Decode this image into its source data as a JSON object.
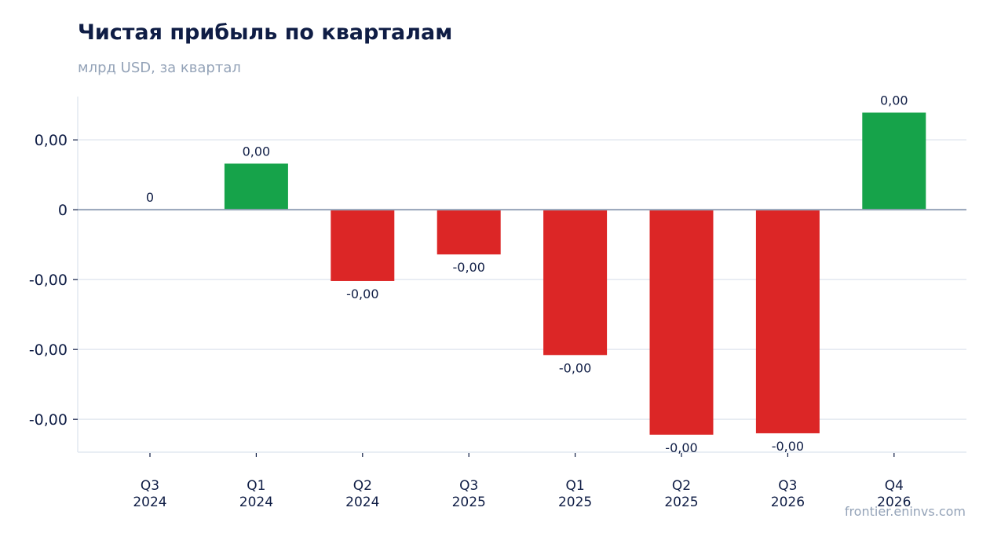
{
  "header": {
    "title": "Чистая прибыль по кварталам",
    "subtitle": "млрд USD, за квартал"
  },
  "footer": {
    "source": "frontier.eninvs.com"
  },
  "colors": {
    "positive": "#16a34a",
    "negative": "#dc2626",
    "grid": "#e2e8f0",
    "zero_line": "#94a3b8",
    "axis_text": "#0f1d45"
  },
  "chart_data": {
    "type": "bar",
    "categories": [
      "Q3\n2024",
      "Q1\n2024",
      "Q2\n2024",
      "Q3\n2025",
      "Q1\n2025",
      "Q2\n2025",
      "Q3\n2026",
      "Q4\n2026"
    ],
    "values": [
      0,
      0.00066,
      -0.00102,
      -0.00064,
      -0.00208,
      -0.00322,
      -0.0032,
      0.00139
    ],
    "data_labels": [
      "0",
      "0,00",
      "-0,00",
      "-0,00",
      "-0,00",
      "-0,00",
      "-0,00",
      "0,00"
    ],
    "y_ticks": [
      0.001,
      0,
      -0.001,
      -0.002,
      -0.003
    ],
    "y_tick_labels": [
      "0,00",
      "0",
      "-0,00",
      "-0,00",
      "-0,00"
    ],
    "ylim": [
      -0.00347,
      0.00162
    ],
    "grid": true,
    "legend": "none",
    "xlabel": "",
    "ylabel": ""
  }
}
